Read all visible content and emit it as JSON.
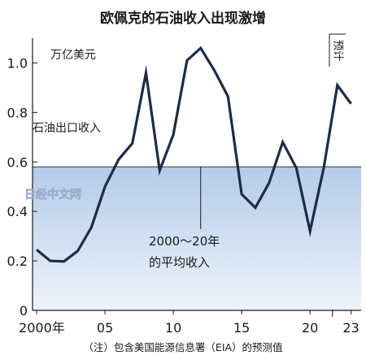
{
  "chart_data": {
    "type": "line",
    "title": "欧佩克的石油收入出现激增",
    "unit_label": "万亿美元",
    "series": [
      {
        "name": "石油出口收入",
        "x": [
          2000,
          2001,
          2002,
          2003,
          2004,
          2005,
          2006,
          2007,
          2008,
          2009,
          2010,
          2011,
          2012,
          2013,
          2014,
          2015,
          2016,
          2017,
          2018,
          2019,
          2020,
          2021,
          2022,
          2023
        ],
        "values": [
          0.245,
          0.2,
          0.198,
          0.24,
          0.335,
          0.5,
          0.61,
          0.675,
          0.96,
          0.565,
          0.71,
          1.01,
          1.06,
          0.97,
          0.865,
          0.47,
          0.415,
          0.515,
          0.68,
          0.575,
          0.32,
          0.575,
          0.91,
          0.835
        ]
      }
    ],
    "average": {
      "value": 0.58,
      "label_line1": "2000～20年",
      "label_line2": "的平均收入"
    },
    "forecast_label": "预计",
    "forecast_from": 2022,
    "xlim": [
      1999.7,
      2023.5
    ],
    "ylim": [
      0,
      1.1
    ],
    "y_ticks": [
      {
        "value": 0,
        "label": "0"
      },
      {
        "value": 0.2,
        "label": "0.2"
      },
      {
        "value": 0.4,
        "label": "0.4"
      },
      {
        "value": 0.6,
        "label": "0.6"
      },
      {
        "value": 0.8,
        "label": "0.8"
      },
      {
        "value": 1.0,
        "label": "1.0"
      }
    ],
    "x_ticks": [
      {
        "value": 2000,
        "label": "2000年"
      },
      {
        "value": 2005,
        "label": "05"
      },
      {
        "value": 2010,
        "label": "10"
      },
      {
        "value": 2015,
        "label": "15"
      },
      {
        "value": 2020,
        "label": "20"
      },
      {
        "value": 2023,
        "label": "23"
      }
    ],
    "note": "（注）包含美国能源信息署（EIA）的预测值",
    "watermark": "日经中文网",
    "colors": {
      "line": "#1e2a4a",
      "band_top": "#b4cbe9",
      "band_bottom": "#eef3fb"
    }
  }
}
